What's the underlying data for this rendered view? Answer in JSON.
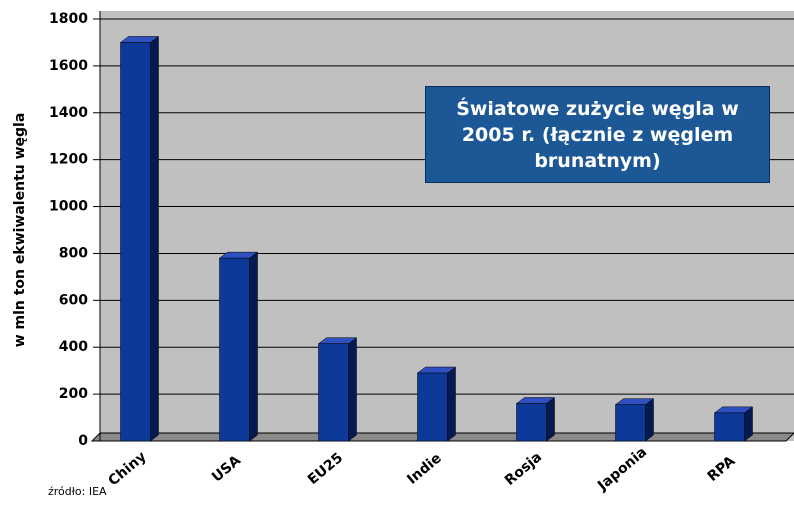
{
  "chart_data": {
    "type": "bar",
    "title": "Światowe zużycie węgla w 2005 r. (łącznie z węglem brunatnym)",
    "ylabel": "w mln ton ekwiwalentu węgla",
    "source": "źródło: IEA",
    "categories": [
      "Chiny",
      "USA",
      "EU25",
      "Indie",
      "Rosja",
      "Japonia",
      "RPA"
    ],
    "values": [
      1700,
      780,
      415,
      290,
      160,
      155,
      120
    ],
    "color": "#0d3a9a",
    "ylim": [
      0,
      1800
    ],
    "yticks": [
      0,
      200,
      400,
      600,
      800,
      1000,
      1200,
      1400,
      1600,
      1800
    ],
    "grid": true
  }
}
